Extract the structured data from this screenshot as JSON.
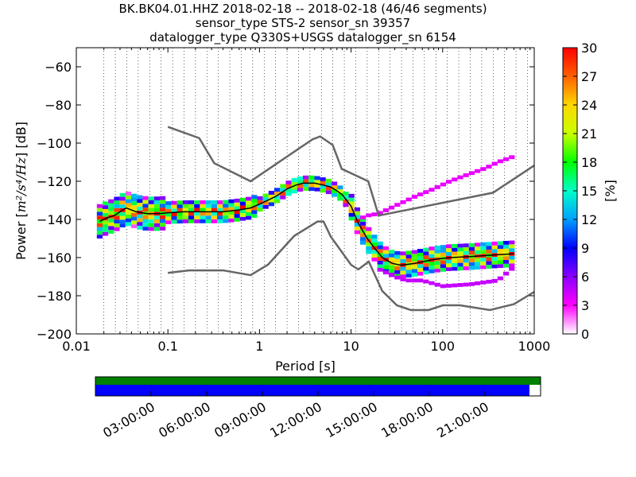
{
  "chart_data": {
    "type": "heatmap",
    "title_lines": [
      "BK.BK04.01.HHZ   2018-02-18 -- 2018-02-18  (46/46 segments)",
      "sensor_type STS-2 sensor_sn 39357",
      "datalogger_type Q330S+USGS datalogger_sn 6154"
    ],
    "xlabel": "Period [s]",
    "ylabel_prefix": "Power [",
    "ylabel_unit": "m²/s⁴/Hz",
    "ylabel_suffix": "] [dB]",
    "x_scale": "log",
    "xlim": [
      0.01,
      1000
    ],
    "ylim": [
      -200,
      -50
    ],
    "x_ticks": [
      {
        "value": 0.01,
        "label": "0.01"
      },
      {
        "value": 0.1,
        "label": "0.1"
      },
      {
        "value": 1,
        "label": "1"
      },
      {
        "value": 10,
        "label": "10"
      },
      {
        "value": 100,
        "label": "100"
      },
      {
        "value": 1000,
        "label": "1000"
      }
    ],
    "y_ticks": [
      {
        "value": -60,
        "label": "−60"
      },
      {
        "value": -80,
        "label": "−80"
      },
      {
        "value": -100,
        "label": "−100"
      },
      {
        "value": -120,
        "label": "−120"
      },
      {
        "value": -140,
        "label": "−140"
      },
      {
        "value": -160,
        "label": "−160"
      },
      {
        "value": -180,
        "label": "−180"
      },
      {
        "value": -200,
        "label": "−200"
      }
    ],
    "grid": "dotted vertical lines at period bins",
    "colorbar": {
      "label": "[%]",
      "min": 0,
      "max": 30,
      "ticks": [
        "0",
        "3",
        "6",
        "9",
        "12",
        "15",
        "18",
        "21",
        "24",
        "27",
        "30"
      ],
      "colormap": [
        "#ffffff",
        "#ff00ff",
        "#8a00ff",
        "#0000ff",
        "#00a0ff",
        "#00ffc8",
        "#00ff00",
        "#c8ff00",
        "#ffd700",
        "#ff6000",
        "#ff0000"
      ]
    },
    "series": [
      {
        "name": "",
        "role": "new high noise model",
        "color": "#666666",
        "points": [
          [
            0.1,
            -91.5
          ],
          [
            0.22,
            -97.4
          ],
          [
            0.32,
            -110.5
          ],
          [
            0.8,
            -120
          ],
          [
            3.8,
            -98
          ],
          [
            4.6,
            -96.5
          ],
          [
            6.3,
            -101
          ],
          [
            7.9,
            -113.5
          ],
          [
            15.4,
            -120
          ],
          [
            20,
            -138
          ],
          [
            354.8,
            -126
          ],
          [
            10000,
            -80
          ]
        ]
      },
      {
        "name": "",
        "role": "new low noise model",
        "color": "#666666",
        "points": [
          [
            0.1,
            -168
          ],
          [
            0.17,
            -166.7
          ],
          [
            0.4,
            -166.7
          ],
          [
            0.8,
            -169.2
          ],
          [
            1.24,
            -163.7
          ],
          [
            2.4,
            -148.6
          ],
          [
            4.3,
            -141.1
          ],
          [
            5,
            -141.1
          ],
          [
            6,
            -149
          ],
          [
            10,
            -163.8
          ],
          [
            12,
            -166.2
          ],
          [
            15.6,
            -162.1
          ],
          [
            21.9,
            -177.5
          ],
          [
            31.6,
            -185
          ],
          [
            45,
            -187.5
          ],
          [
            70,
            -187.5
          ],
          [
            101,
            -185
          ],
          [
            154,
            -185
          ],
          [
            328,
            -187.5
          ],
          [
            600,
            -184.4
          ],
          [
            1000,
            -178
          ]
        ]
      },
      {
        "name": "",
        "role": "mean PSD",
        "color": "#000000",
        "points": [
          [
            0.018,
            -141
          ],
          [
            0.022,
            -139
          ],
          [
            0.026,
            -138
          ],
          [
            0.03,
            -136
          ],
          [
            0.035,
            -134
          ],
          [
            0.045,
            -136
          ],
          [
            0.06,
            -137
          ],
          [
            0.08,
            -137
          ],
          [
            0.1,
            -136.5
          ],
          [
            0.15,
            -136
          ],
          [
            0.25,
            -136
          ],
          [
            0.4,
            -136
          ],
          [
            0.6,
            -135
          ],
          [
            0.8,
            -134
          ],
          [
            1,
            -132
          ],
          [
            1.5,
            -128
          ],
          [
            2,
            -124
          ],
          [
            2.5,
            -122
          ],
          [
            3,
            -121
          ],
          [
            4,
            -121
          ],
          [
            5,
            -122
          ],
          [
            6,
            -123
          ],
          [
            7,
            -125
          ],
          [
            8,
            -127
          ],
          [
            10,
            -133
          ],
          [
            12,
            -142
          ],
          [
            15,
            -150
          ],
          [
            18,
            -155
          ],
          [
            22,
            -160
          ],
          [
            28,
            -163
          ],
          [
            35,
            -164
          ],
          [
            50,
            -163
          ],
          [
            80,
            -161
          ],
          [
            120,
            -160
          ],
          [
            200,
            -159.5
          ],
          [
            400,
            -158.5
          ],
          [
            600,
            -158
          ]
        ]
      },
      {
        "name": "",
        "role": "mode upper branch",
        "color": "#9900ff",
        "points": [
          [
            12,
            -140
          ],
          [
            15,
            -138
          ],
          [
            20,
            -137
          ],
          [
            30,
            -133
          ],
          [
            50,
            -128
          ],
          [
            80,
            -124
          ],
          [
            120,
            -120
          ],
          [
            200,
            -116
          ],
          [
            300,
            -113
          ],
          [
            400,
            -110
          ],
          [
            600,
            -107
          ]
        ]
      },
      {
        "name": "",
        "role": "lower low-period branch",
        "color": "#9900ff",
        "points": [
          [
            20,
            -166
          ],
          [
            30,
            -170
          ],
          [
            40,
            -172
          ],
          [
            60,
            -172
          ],
          [
            100,
            -175
          ],
          [
            200,
            -174
          ],
          [
            400,
            -172
          ],
          [
            600,
            -165
          ]
        ]
      }
    ],
    "time_bar": {
      "labels": [
        "03:00:00",
        "06:00:00",
        "09:00:00",
        "12:00:00",
        "15:00:00",
        "18:00:00",
        "21:00:00"
      ],
      "coverage_fraction": 0.975,
      "colors": {
        "top": "#008000",
        "bottom": "#0000ff"
      }
    }
  }
}
